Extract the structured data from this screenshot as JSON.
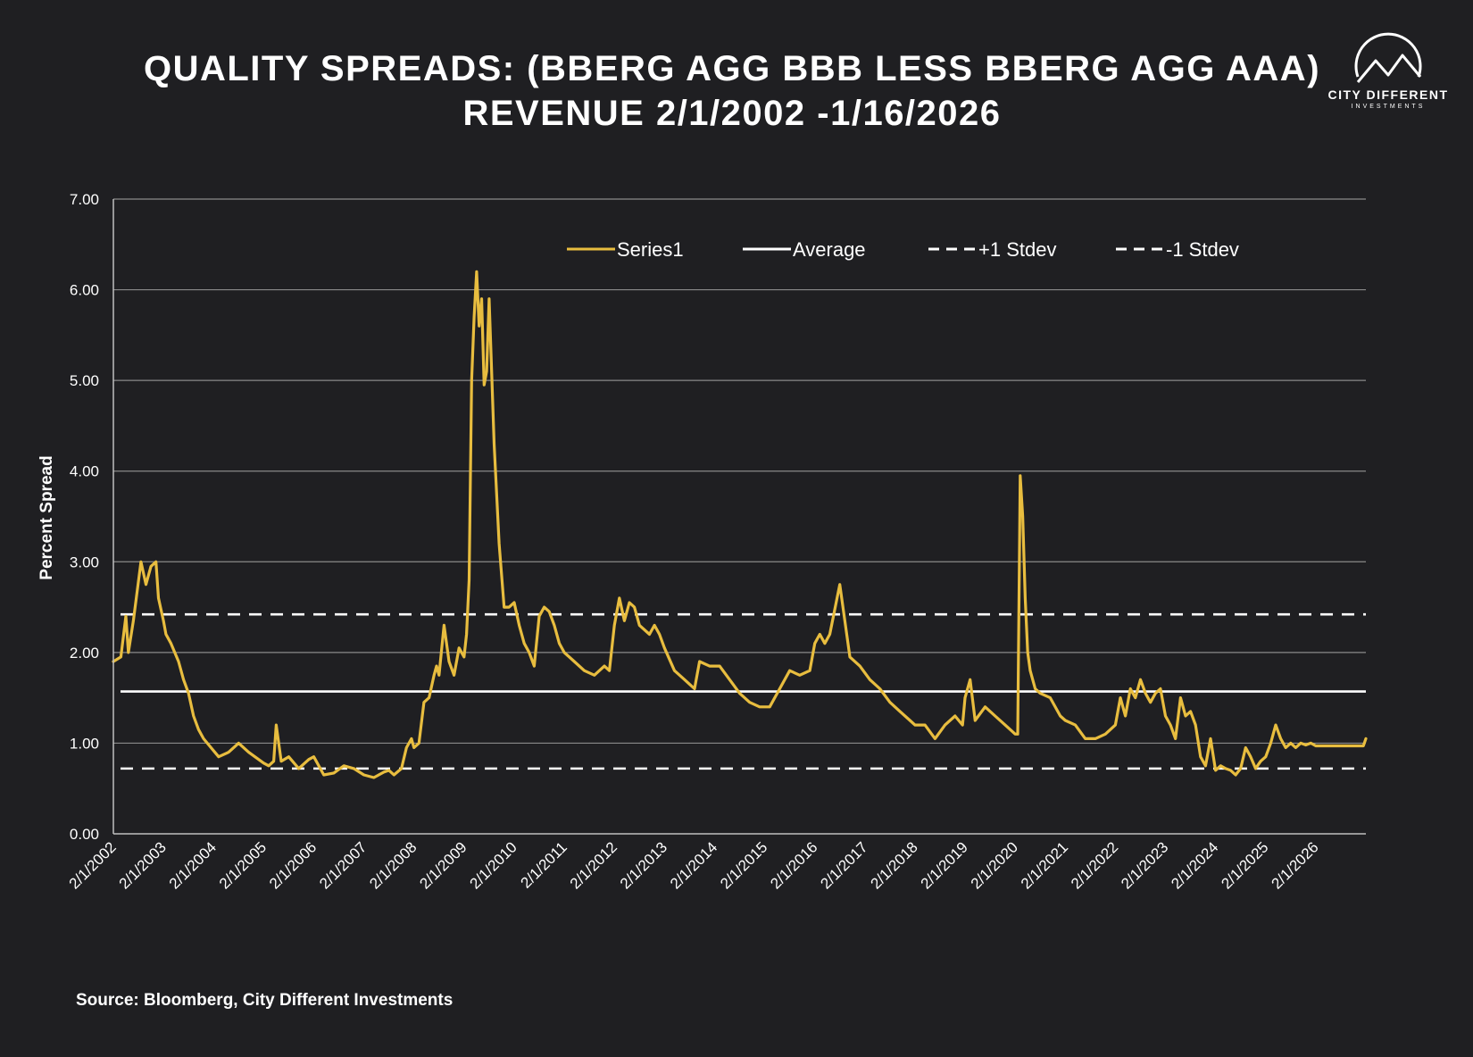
{
  "header": {
    "title_line1": "QUALITY SPREADS: (BBERG AGG BBB LESS BBERG AGG AAA)",
    "title_line2": "REVENUE 2/1/2002 -1/16/2026"
  },
  "logo": {
    "brand": "CITY DIFFERENT",
    "sub": "INVESTMENTS",
    "icon": "mountain-circle-icon"
  },
  "footer": {
    "source": "Source: Bloomberg, City Different Investments"
  },
  "colors": {
    "background": "#1f1f22",
    "series": "#e8bd3f",
    "reference": "#ffffff",
    "grid": "#8a8a8a"
  },
  "chart_data": {
    "type": "line",
    "title": "QUALITY SPREADS: (BBERG AGG BBB LESS BBERG AGG AAA) REVENUE 2/1/2002 -1/16/2026",
    "xlabel": "",
    "ylabel": "Percent Spread",
    "ylim": [
      0,
      7
    ],
    "yticks": [
      "0.00",
      "1.00",
      "2.00",
      "3.00",
      "4.00",
      "5.00",
      "6.00",
      "7.00"
    ],
    "xlim": [
      2002.0,
      2027.0
    ],
    "xticks": [
      "2/1/2002",
      "2/1/2003",
      "2/1/2004",
      "2/1/2005",
      "2/1/2006",
      "2/1/2007",
      "2/1/2008",
      "2/1/2009",
      "2/1/2010",
      "2/1/2011",
      "2/1/2012",
      "2/1/2013",
      "2/1/2014",
      "2/1/2015",
      "2/1/2016",
      "2/1/2017",
      "2/1/2018",
      "2/1/2019",
      "2/1/2020",
      "2/1/2021",
      "2/1/2022",
      "2/1/2023",
      "2/1/2024",
      "2/1/2025",
      "2/1/2026"
    ],
    "grid": true,
    "legend_position": "top",
    "legend": [
      "Series1",
      "Average",
      "+1 Stdev",
      "-1 Stdev"
    ],
    "series": [
      {
        "name": "Series1",
        "color": "#e8bd3f",
        "x": [
          2002.0,
          2002.15,
          2002.25,
          2002.3,
          2002.4,
          2002.55,
          2002.65,
          2002.75,
          2002.85,
          2002.9,
          2003.0,
          2003.05,
          2003.15,
          2003.3,
          2003.4,
          2003.5,
          2003.6,
          2003.7,
          2003.8,
          2003.95,
          2004.1,
          2004.3,
          2004.5,
          2004.7,
          2004.9,
          2005.0,
          2005.1,
          2005.2,
          2005.25,
          2005.35,
          2005.5,
          2005.7,
          2005.9,
          2006.0,
          2006.2,
          2006.4,
          2006.6,
          2006.8,
          2007.0,
          2007.2,
          2007.4,
          2007.5,
          2007.6,
          2007.75,
          2007.85,
          2007.95,
          2008.0,
          2008.1,
          2008.2,
          2008.3,
          2008.4,
          2008.45,
          2008.5,
          2008.6,
          2008.7,
          2008.8,
          2008.9,
          2009.0,
          2009.05,
          2009.1,
          2009.15,
          2009.2,
          2009.25,
          2009.3,
          2009.35,
          2009.4,
          2009.45,
          2009.5,
          2009.6,
          2009.7,
          2009.8,
          2009.9,
          2010.0,
          2010.1,
          2010.2,
          2010.3,
          2010.4,
          2010.5,
          2010.6,
          2010.7,
          2010.8,
          2010.9,
          2011.0,
          2011.2,
          2011.4,
          2011.6,
          2011.8,
          2011.9,
          2012.0,
          2012.1,
          2012.2,
          2012.3,
          2012.4,
          2012.5,
          2012.7,
          2012.8,
          2012.9,
          2013.0,
          2013.2,
          2013.4,
          2013.5,
          2013.6,
          2013.7,
          2013.9,
          2014.1,
          2014.3,
          2014.5,
          2014.7,
          2014.9,
          2015.1,
          2015.3,
          2015.5,
          2015.7,
          2015.9,
          2016.0,
          2016.1,
          2016.2,
          2016.3,
          2016.5,
          2016.7,
          2016.9,
          2017.1,
          2017.3,
          2017.5,
          2017.7,
          2017.9,
          2018.0,
          2018.2,
          2018.4,
          2018.6,
          2018.8,
          2018.95,
          2019.0,
          2019.1,
          2019.2,
          2019.4,
          2019.6,
          2019.8,
          2020.0,
          2020.05,
          2020.1,
          2020.15,
          2020.2,
          2020.25,
          2020.3,
          2020.4,
          2020.5,
          2020.7,
          2020.9,
          2021.0,
          2021.2,
          2021.4,
          2021.6,
          2021.8,
          2022.0,
          2022.1,
          2022.2,
          2022.3,
          2022.4,
          2022.5,
          2022.6,
          2022.7,
          2022.8,
          2022.9,
          2023.0,
          2023.1,
          2023.2,
          2023.3,
          2023.4,
          2023.5,
          2023.6,
          2023.7,
          2023.8,
          2023.9,
          2024.0,
          2024.1,
          2024.2,
          2024.3,
          2024.4,
          2024.5,
          2024.6,
          2024.7,
          2024.8,
          2024.9,
          2025.0,
          2025.1,
          2025.2,
          2025.3,
          2025.4,
          2025.5,
          2025.6,
          2025.7,
          2025.8,
          2025.9,
          2026.0,
          2026.2,
          2026.4,
          2026.6,
          2026.8,
          2026.95,
          2027.0
        ],
        "values": [
          1.9,
          1.95,
          2.4,
          2.0,
          2.35,
          3.0,
          2.75,
          2.95,
          3.0,
          2.6,
          2.35,
          2.2,
          2.1,
          1.9,
          1.7,
          1.55,
          1.3,
          1.15,
          1.05,
          0.95,
          0.85,
          0.9,
          1.0,
          0.9,
          0.82,
          0.78,
          0.75,
          0.8,
          1.2,
          0.8,
          0.85,
          0.72,
          0.82,
          0.85,
          0.65,
          0.67,
          0.75,
          0.72,
          0.65,
          0.62,
          0.68,
          0.7,
          0.65,
          0.72,
          0.95,
          1.05,
          0.95,
          1.0,
          1.45,
          1.5,
          1.75,
          1.85,
          1.75,
          2.3,
          1.9,
          1.75,
          2.05,
          1.95,
          2.2,
          2.8,
          5.0,
          5.7,
          6.2,
          5.6,
          5.9,
          4.95,
          5.1,
          5.9,
          4.3,
          3.2,
          2.5,
          2.5,
          2.55,
          2.3,
          2.1,
          2.0,
          1.85,
          2.4,
          2.5,
          2.45,
          2.3,
          2.1,
          2.0,
          1.9,
          1.8,
          1.75,
          1.85,
          1.8,
          2.3,
          2.6,
          2.35,
          2.55,
          2.5,
          2.3,
          2.2,
          2.3,
          2.2,
          2.05,
          1.8,
          1.7,
          1.65,
          1.6,
          1.9,
          1.85,
          1.85,
          1.7,
          1.55,
          1.45,
          1.4,
          1.4,
          1.6,
          1.8,
          1.75,
          1.8,
          2.1,
          2.2,
          2.1,
          2.2,
          2.75,
          1.95,
          1.85,
          1.7,
          1.6,
          1.45,
          1.35,
          1.25,
          1.2,
          1.2,
          1.05,
          1.2,
          1.3,
          1.2,
          1.5,
          1.7,
          1.25,
          1.4,
          1.3,
          1.2,
          1.1,
          1.1,
          3.95,
          3.5,
          2.6,
          2.0,
          1.8,
          1.6,
          1.55,
          1.5,
          1.3,
          1.25,
          1.2,
          1.05,
          1.05,
          1.1,
          1.2,
          1.5,
          1.3,
          1.6,
          1.5,
          1.7,
          1.55,
          1.45,
          1.55,
          1.6,
          1.3,
          1.2,
          1.05,
          1.5,
          1.3,
          1.35,
          1.2,
          0.85,
          0.75,
          1.05,
          0.7,
          0.75,
          0.72,
          0.7,
          0.65,
          0.72,
          0.95,
          0.85,
          0.72,
          0.8,
          0.85,
          1.0,
          1.2,
          1.05,
          0.95,
          1.0,
          0.95,
          1.0,
          0.98,
          1.0,
          0.97,
          0.97,
          0.97,
          0.97,
          0.97,
          0.97,
          1.05
        ]
      },
      {
        "name": "Average",
        "color": "#ffffff",
        "style": "solid",
        "values": [
          1.57,
          1.57
        ]
      },
      {
        "name": "+1 Stdev",
        "color": "#ffffff",
        "style": "dashed",
        "values": [
          2.42,
          2.42
        ]
      },
      {
        "name": "-1 Stdev",
        "color": "#ffffff",
        "style": "dashed",
        "values": [
          0.72,
          0.72
        ]
      }
    ]
  }
}
